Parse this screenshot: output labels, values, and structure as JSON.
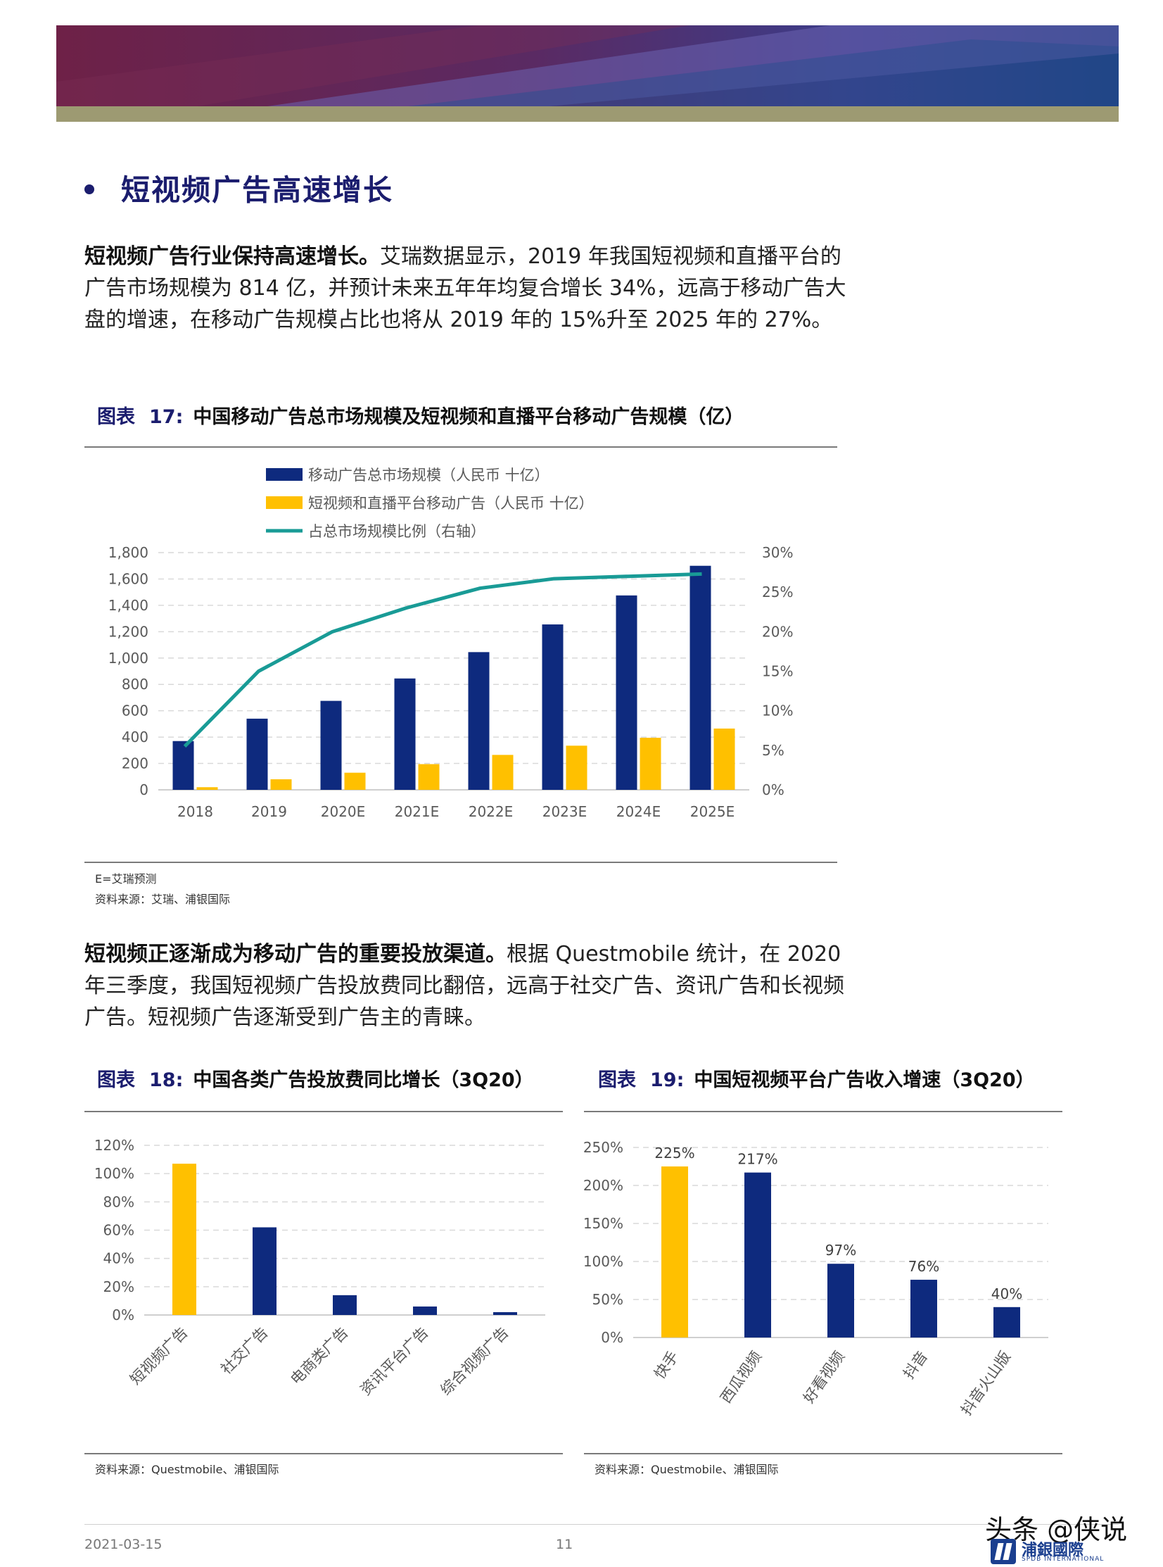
{
  "section": {
    "heading": "短视频广告高速增长"
  },
  "para1": {
    "lead": "短视频广告行业保持高速增长。",
    "body": "艾瑞数据显示，2019 年我国短视频和直播平台的广告市场规模为 814 亿，并预计未来五年年均复合增长 34%，远高于移动广告大盘的增速，在移动广告规模占比也将从 2019 年的 15%升至 2025 年的 27%。"
  },
  "fig17": {
    "prefix": "图表",
    "number": "17:",
    "title": "中国移动广告总市场规模及短视频和直播平台移动广告规模（亿）",
    "note": "E=艾瑞预测",
    "source": "资料来源：艾瑞、浦银国际"
  },
  "para2": {
    "lead": "短视频正逐渐成为移动广告的重要投放渠道。",
    "body": "根据 Questmobile 统计，在 2020 年三季度，我国短视频广告投放费同比翻倍，远高于社交广告、资讯广告和长视频广告。短视频广告逐渐受到广告主的青睐。"
  },
  "fig18": {
    "prefix": "图表",
    "number": "18:",
    "title": "中国各类广告投放费同比增长（3Q20）",
    "source": "资料来源：Questmobile、浦银国际"
  },
  "fig19": {
    "prefix": "图表",
    "number": "19:",
    "title": "中国短视频平台广告收入增速（3Q20）",
    "source": "资料来源：Questmobile、浦银国际"
  },
  "chart_data": [
    {
      "type": "bar",
      "categories": [
        "2018",
        "2019",
        "2020E",
        "2021E",
        "2022E",
        "2023E",
        "2024E",
        "2025E"
      ],
      "series": [
        {
          "name": "移动广告总市场规模（人民币 十亿）",
          "type": "bar",
          "axis": "left",
          "color": "#0e2a7e",
          "values": [
            370,
            540,
            675,
            845,
            1045,
            1255,
            1475,
            1700
          ]
        },
        {
          "name": "短视频和直播平台移动广告（人民币 十亿）",
          "type": "bar",
          "axis": "left",
          "color": "#ffc000",
          "values": [
            20,
            80,
            130,
            195,
            265,
            335,
            395,
            465
          ]
        },
        {
          "name": "占总市场规模比例（右轴）",
          "type": "line",
          "axis": "right",
          "color": "#199b96",
          "values": [
            5.5,
            15,
            20,
            23,
            25.5,
            26.7,
            27,
            27.3
          ]
        }
      ],
      "y_left": {
        "min": 0,
        "max": 1800,
        "ticks": [
          "0",
          "200",
          "400",
          "600",
          "800",
          "1,000",
          "1,200",
          "1,400",
          "1,600",
          "1,800"
        ]
      },
      "y_right": {
        "min": 0,
        "max": 30,
        "ticks": [
          "0%",
          "5%",
          "10%",
          "15%",
          "20%",
          "25%",
          "30%"
        ]
      },
      "grid": true,
      "legend": "top-left"
    },
    {
      "type": "bar",
      "categories": [
        "短视频广告",
        "社交广告",
        "电商类广告",
        "资讯平台广告",
        "综合视频广告"
      ],
      "values": [
        107,
        62,
        14,
        6,
        2
      ],
      "colors": [
        "#ffc000",
        "#0e2a7e",
        "#0e2a7e",
        "#0e2a7e",
        "#0e2a7e"
      ],
      "y": {
        "min": 0,
        "max": 120,
        "ticks": [
          "0%",
          "20%",
          "40%",
          "60%",
          "80%",
          "100%",
          "120%"
        ]
      },
      "grid": true
    },
    {
      "type": "bar",
      "categories": [
        "快手",
        "西瓜视频",
        "好看视频",
        "抖音",
        "抖音火山版"
      ],
      "values": [
        225,
        217,
        97,
        76,
        40
      ],
      "data_labels": [
        "225%",
        "217%",
        "97%",
        "76%",
        "40%"
      ],
      "colors": [
        "#ffc000",
        "#0e2a7e",
        "#0e2a7e",
        "#0e2a7e",
        "#0e2a7e"
      ],
      "y": {
        "min": 0,
        "max": 250,
        "ticks": [
          "0%",
          "50%",
          "100%",
          "150%",
          "200%",
          "250%"
        ]
      },
      "grid": true
    }
  ],
  "footer": {
    "date": "2021-03-15",
    "page": "11"
  },
  "watermark": "头条 @侠说",
  "logo": {
    "cn": "浦銀國際",
    "en": "SPDB INTERNATIONAL"
  }
}
